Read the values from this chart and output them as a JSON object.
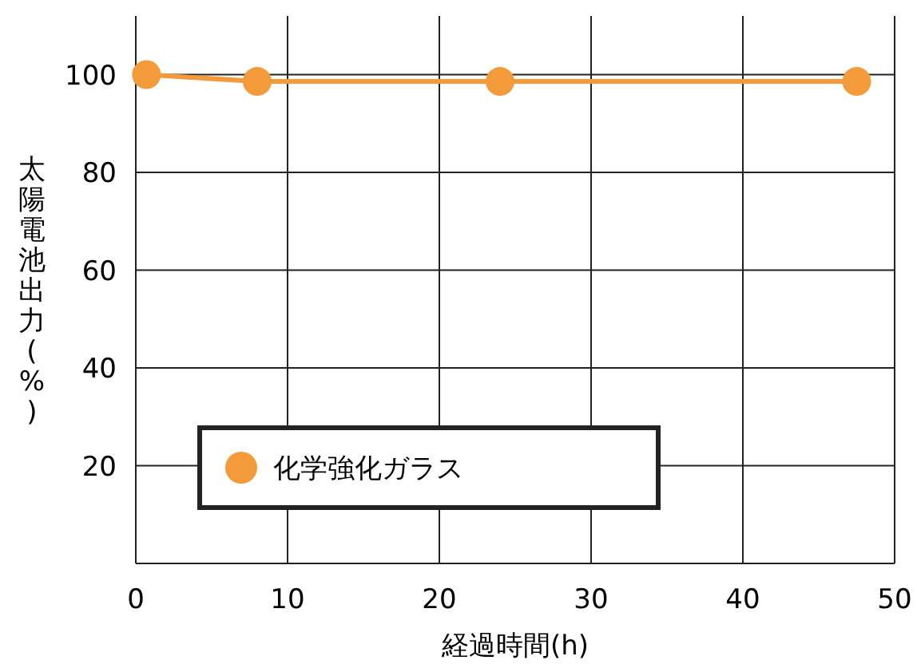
{
  "chart_data": {
    "type": "line",
    "xlabel": "経過時間(h)",
    "ylabel": "太陽電池出力(%)",
    "x": [
      0.7,
      8,
      24,
      47.5
    ],
    "series": [
      {
        "name": "化学強化ガラス",
        "color": "#f39a3a",
        "values": [
          100,
          98.6,
          98.6,
          98.6
        ]
      }
    ],
    "xlim": [
      0,
      50
    ],
    "xticks": [
      0,
      10,
      20,
      30,
      40,
      50
    ],
    "ylim": [
      0,
      112
    ],
    "yticks": [
      20,
      40,
      60,
      80,
      100
    ],
    "grid": true,
    "legend": "bottom left",
    "marker": "circle",
    "line_style": "solid"
  }
}
